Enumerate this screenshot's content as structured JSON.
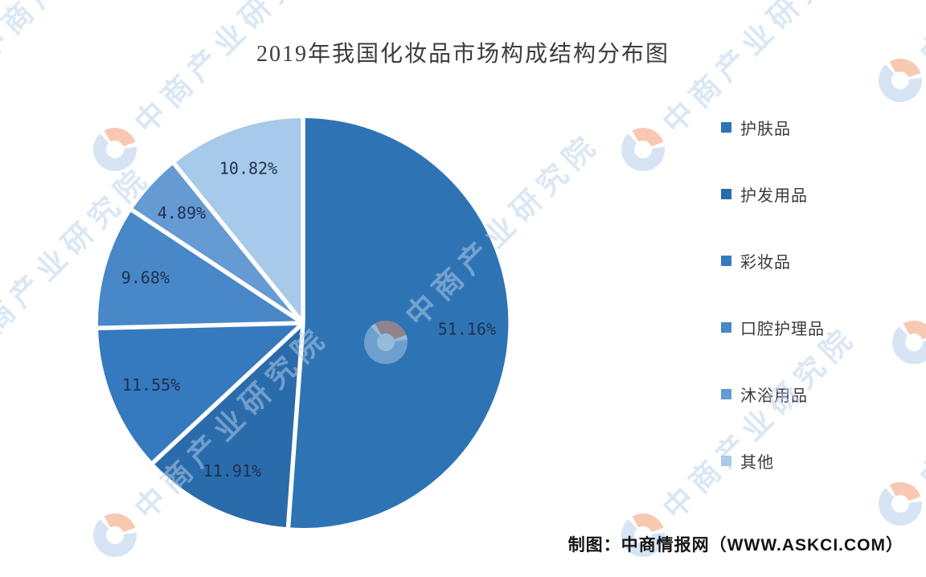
{
  "title": "2019年我国化妆品市场构成结构分布图",
  "attribution": "制图：中商情报网（WWW.ASKCI.COM）",
  "watermark": {
    "text": "中商产业研究院",
    "text_color": "#b9d0ea",
    "logo_blue": "#aecbe8",
    "logo_orange": "#f09468"
  },
  "chart_data": {
    "type": "pie",
    "title": "2019年我国化妆品市场构成结构分布图",
    "unit": "%",
    "start_angle_deg": 0,
    "direction": "clockwise",
    "legend_position": "right",
    "divider_color": "#ffffff",
    "label_color": "#1e3150",
    "slices": [
      {
        "label": "护肤品",
        "value": 51.16,
        "display": "51.16%",
        "color": "#2e74b5"
      },
      {
        "label": "护发用品",
        "value": 11.91,
        "display": "11.91%",
        "color": "#2a6bac"
      },
      {
        "label": "彩妆品",
        "value": 11.55,
        "display": "11.55%",
        "color": "#3579bf"
      },
      {
        "label": "口腔护理品",
        "value": 9.68,
        "display": "9.68%",
        "color": "#4887c8"
      },
      {
        "label": "沐浴用品",
        "value": 4.89,
        "display": "4.89%",
        "color": "#659ad2"
      },
      {
        "label": "其他",
        "value": 10.82,
        "display": "10.82%",
        "color": "#a7c9ea"
      }
    ]
  }
}
